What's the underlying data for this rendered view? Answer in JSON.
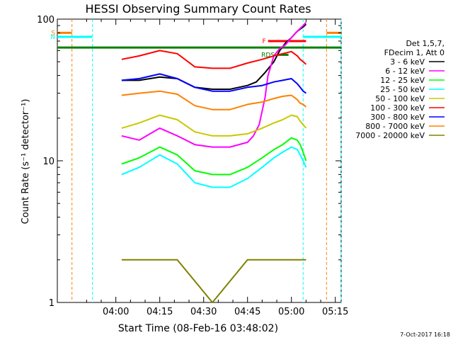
{
  "chart_data": {
    "type": "line",
    "title": "HESSI Observing Summary Count Rates",
    "xlabel": "Start Time (08-Feb-16 03:48:02)",
    "ylabel": "Count Rate (s⁻¹ detector⁻¹)",
    "yscale": "log",
    "ylim": [
      1,
      100
    ],
    "xlim_minutes": [
      -8,
      89
    ],
    "xtick_labels": [
      "04:00",
      "04:15",
      "04:30",
      "04:45",
      "05:00",
      "05:15"
    ],
    "xtick_minutes": [
      12,
      27,
      42,
      57,
      72,
      87
    ],
    "ytick_labels": [
      "1",
      "10",
      "100"
    ],
    "ytick_values": [
      1,
      10,
      100
    ],
    "legend_header": [
      "Det 1,5,7,",
      "FDecim 1, Att 0"
    ],
    "timestamp": "7-Oct-2017 16:18",
    "series": [
      {
        "name": "3 - 6 keV",
        "color": "#000000",
        "x": [
          14,
          20,
          27,
          33,
          39,
          45,
          51,
          57,
          60,
          63,
          66,
          68,
          70,
          72,
          73,
          74,
          75,
          76,
          77
        ],
        "y": [
          37,
          37,
          39,
          38,
          33,
          32,
          32,
          34,
          36,
          42,
          50,
          60,
          68,
          74,
          78,
          82,
          85,
          88,
          92
        ]
      },
      {
        "name": "6 - 12 keV",
        "color": "#ff00ff",
        "x": [
          14,
          20,
          27,
          33,
          39,
          45,
          51,
          57,
          59,
          61,
          63,
          64,
          66,
          68,
          70,
          71,
          72,
          73,
          74,
          75,
          76,
          77
        ],
        "y": [
          15,
          14,
          17,
          15,
          13,
          12.5,
          12.5,
          13.5,
          15,
          18,
          28,
          40,
          55,
          62,
          66,
          70,
          74,
          78,
          82,
          86,
          90,
          95
        ]
      },
      {
        "name": "12 - 25 keV",
        "color": "#00ff00",
        "x": [
          14,
          20,
          27,
          33,
          39,
          45,
          51,
          57,
          62,
          66,
          69,
          72,
          74,
          75,
          76,
          77
        ],
        "y": [
          9.5,
          10.5,
          12.5,
          11,
          8.5,
          8,
          8,
          9,
          10.5,
          12,
          13,
          14.5,
          14,
          13,
          11.5,
          10
        ]
      },
      {
        "name": "25 - 50 keV",
        "color": "#00ffff",
        "x": [
          14,
          20,
          27,
          33,
          39,
          45,
          51,
          57,
          62,
          66,
          69,
          72,
          74,
          75,
          76,
          77
        ],
        "y": [
          8,
          9,
          11,
          9.5,
          7,
          6.5,
          6.5,
          7.5,
          9,
          10.5,
          11.5,
          12.5,
          12,
          11,
          10,
          9
        ]
      },
      {
        "name": "50 - 100 keV",
        "color": "#c8c800",
        "x": [
          14,
          20,
          27,
          33,
          39,
          45,
          51,
          57,
          62,
          66,
          69,
          72,
          74,
          75,
          76,
          77
        ],
        "y": [
          17,
          18.5,
          21,
          19.5,
          16,
          15,
          15,
          15.5,
          17,
          18.5,
          19.5,
          21,
          20.5,
          19,
          18,
          17
        ]
      },
      {
        "name": "100 - 300 keV",
        "color": "#ff0000",
        "x": [
          14,
          20,
          27,
          33,
          39,
          45,
          51,
          57,
          62,
          66,
          69,
          72,
          74,
          75,
          76,
          77
        ],
        "y": [
          52,
          55,
          60,
          57,
          46,
          45,
          45,
          49,
          52,
          55,
          57,
          59,
          55,
          52,
          50,
          48
        ]
      },
      {
        "name": "300 - 800 keV",
        "color": "#0000ff",
        "x": [
          14,
          20,
          27,
          33,
          39,
          45,
          51,
          57,
          62,
          66,
          69,
          72,
          74,
          75,
          76,
          77
        ],
        "y": [
          37,
          38,
          41,
          38,
          33,
          31,
          31,
          33,
          34,
          36,
          37,
          38,
          35,
          33,
          31,
          30
        ]
      },
      {
        "name": "800 - 7000 keV",
        "color": "#ff8000",
        "x": [
          14,
          20,
          27,
          33,
          39,
          45,
          51,
          57,
          62,
          66,
          69,
          72,
          74,
          75,
          76,
          77
        ],
        "y": [
          29,
          30,
          31,
          29.5,
          24.5,
          23,
          23,
          25,
          26,
          27.5,
          28.5,
          29,
          27,
          25.5,
          25,
          24
        ]
      },
      {
        "name": "7000 - 20000 keV",
        "color": "#808000",
        "x": [
          14,
          23,
          33,
          45,
          57,
          66,
          72,
          77
        ],
        "y": [
          2,
          2,
          2,
          1,
          2,
          2,
          2,
          2
        ]
      }
    ],
    "flags": [
      {
        "label": "S",
        "color": "#ff8000",
        "x": [
          -8,
          -3
        ],
        "y": 80
      },
      {
        "label": "N",
        "color": "#00ffff",
        "x": [
          -8,
          4
        ],
        "y": 75
      },
      {
        "label": "F",
        "color": "#ff0000",
        "x": [
          64,
          77
        ],
        "y": 70
      },
      {
        "label": "RDS",
        "color": "#008000",
        "x": [
          67,
          71
        ],
        "y": 56
      },
      {
        "label": "",
        "color": "#008000",
        "x": [
          -8,
          89
        ],
        "y": 63
      },
      {
        "label": "",
        "color": "#ff8000",
        "x": [
          84,
          89
        ],
        "y": 80
      },
      {
        "label": "",
        "color": "#00ffff",
        "x": [
          76,
          89
        ],
        "y": 75
      }
    ],
    "vlines": [
      {
        "x": -3,
        "color": "#ff8000",
        "dashed": true
      },
      {
        "x": 4,
        "color": "#00ffff",
        "dashed": true
      },
      {
        "x": 76,
        "color": "#00ffff",
        "dashed": true
      },
      {
        "x": 84,
        "color": "#ff8000",
        "dashed": true
      },
      {
        "x": 89,
        "color": "#00ffff",
        "dashed": true
      }
    ]
  }
}
